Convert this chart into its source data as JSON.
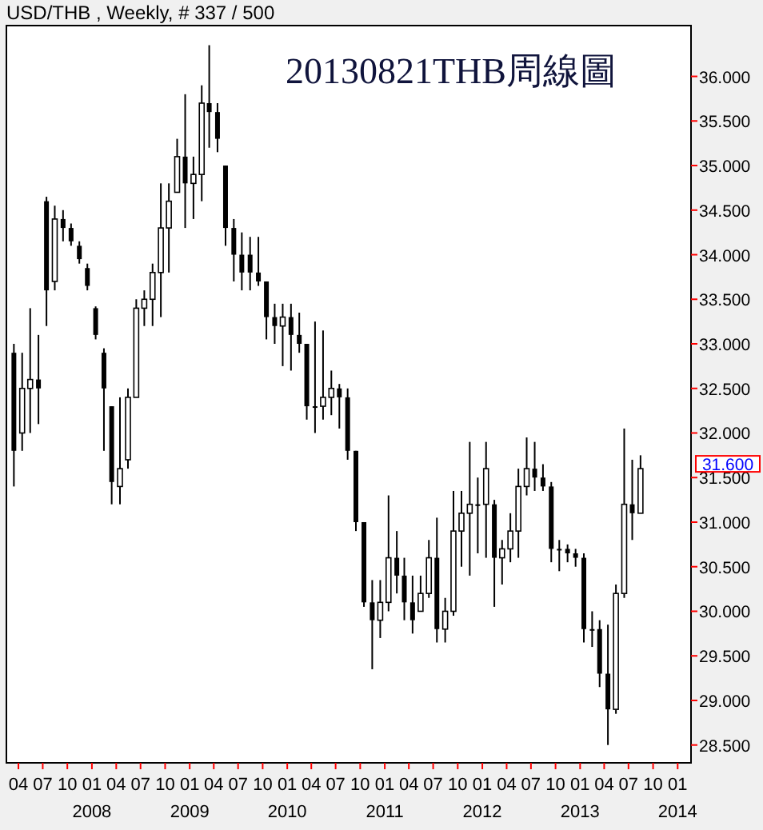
{
  "chart_data": {
    "type": "candlestick",
    "title": "20130821THB周線圖",
    "subtitle": "USD/THB , Weekly, # 337 / 500",
    "color": "#000000",
    "x": [
      "2007-03-15",
      "2007-04-15",
      "2007-05-15",
      "2007-06-15",
      "2007-07-15",
      "2007-08-15",
      "2007-09-15",
      "2007-10-15",
      "2007-11-15",
      "2007-12-15",
      "2008-01-15",
      "2008-02-15",
      "2008-03-15",
      "2008-04-15",
      "2008-05-15",
      "2008-06-15",
      "2008-07-15",
      "2008-08-15",
      "2008-09-15",
      "2008-10-15",
      "2008-11-15",
      "2008-12-15",
      "2009-01-15",
      "2009-02-15",
      "2009-03-15",
      "2009-04-15",
      "2009-05-15",
      "2009-06-15",
      "2009-07-15",
      "2009-08-15",
      "2009-09-15",
      "2009-10-15",
      "2009-11-15",
      "2009-12-15",
      "2010-01-15",
      "2010-02-15",
      "2010-03-15",
      "2010-04-15",
      "2010-05-15",
      "2010-06-15",
      "2010-07-15",
      "2010-08-15",
      "2010-09-15",
      "2010-10-15",
      "2010-11-15",
      "2010-12-15",
      "2011-01-15",
      "2011-02-15",
      "2011-03-15",
      "2011-04-15",
      "2011-05-15",
      "2011-06-15",
      "2011-07-15",
      "2011-08-15",
      "2011-09-15",
      "2011-10-15",
      "2011-11-15",
      "2011-12-15",
      "2012-01-15",
      "2012-02-15",
      "2012-03-15",
      "2012-04-15",
      "2012-05-15",
      "2012-06-15",
      "2012-07-15",
      "2012-08-15",
      "2012-09-15",
      "2012-10-15",
      "2012-11-15",
      "2012-12-15",
      "2013-01-15",
      "2013-02-15",
      "2013-03-15",
      "2013-04-15",
      "2013-05-15",
      "2013-06-15",
      "2013-07-15",
      "2013-08-15"
    ],
    "ohlc": [
      [
        32.9,
        33.0,
        31.4,
        31.8
      ],
      [
        32.0,
        32.9,
        31.8,
        32.5
      ],
      [
        32.5,
        33.4,
        32.0,
        32.6
      ],
      [
        32.6,
        33.1,
        32.1,
        32.5
      ],
      [
        34.6,
        34.65,
        33.2,
        33.6
      ],
      [
        33.7,
        34.55,
        33.6,
        34.4
      ],
      [
        34.4,
        34.5,
        34.15,
        34.3
      ],
      [
        34.3,
        34.35,
        34.1,
        34.15
      ],
      [
        34.1,
        34.15,
        33.9,
        33.95
      ],
      [
        33.85,
        33.9,
        33.6,
        33.65
      ],
      [
        33.4,
        33.42,
        33.05,
        33.1
      ],
      [
        32.9,
        32.95,
        31.8,
        32.5
      ],
      [
        32.3,
        32.3,
        31.2,
        31.45
      ],
      [
        31.4,
        32.4,
        31.2,
        31.6
      ],
      [
        31.7,
        32.5,
        31.6,
        32.4
      ],
      [
        32.4,
        33.5,
        32.4,
        33.4
      ],
      [
        33.4,
        33.6,
        33.2,
        33.5
      ],
      [
        33.5,
        33.9,
        33.2,
        33.8
      ],
      [
        33.8,
        34.8,
        33.3,
        34.3
      ],
      [
        34.3,
        34.8,
        33.8,
        34.6
      ],
      [
        34.7,
        35.3,
        34.7,
        35.1
      ],
      [
        35.1,
        35.8,
        34.3,
        34.8
      ],
      [
        34.8,
        35.1,
        34.4,
        34.9
      ],
      [
        34.9,
        35.9,
        34.6,
        35.7
      ],
      [
        35.7,
        36.35,
        35.2,
        35.6
      ],
      [
        35.6,
        35.7,
        35.15,
        35.3
      ],
      [
        35.0,
        35.0,
        34.1,
        34.3
      ],
      [
        34.3,
        34.4,
        33.7,
        34.0
      ],
      [
        34.0,
        34.25,
        33.6,
        33.8
      ],
      [
        34.0,
        34.2,
        33.6,
        33.8
      ],
      [
        33.8,
        34.2,
        33.65,
        33.7
      ],
      [
        33.7,
        33.7,
        33.05,
        33.3
      ],
      [
        33.3,
        33.45,
        33.0,
        33.2
      ],
      [
        33.2,
        33.45,
        32.75,
        33.3
      ],
      [
        33.3,
        33.45,
        32.7,
        33.1
      ],
      [
        33.1,
        33.35,
        32.9,
        33.0
      ],
      [
        33.0,
        33.0,
        32.15,
        32.3
      ],
      [
        32.3,
        33.25,
        32.0,
        32.3
      ],
      [
        32.3,
        33.15,
        32.15,
        32.4
      ],
      [
        32.4,
        32.7,
        32.2,
        32.5
      ],
      [
        32.5,
        32.55,
        32.05,
        32.4
      ],
      [
        32.4,
        32.5,
        31.7,
        31.8
      ],
      [
        31.8,
        31.8,
        30.9,
        31.0
      ],
      [
        31.0,
        31.0,
        30.05,
        30.1
      ],
      [
        30.1,
        30.35,
        29.35,
        29.9
      ],
      [
        29.9,
        30.35,
        29.7,
        30.1
      ],
      [
        30.1,
        31.3,
        30.0,
        30.6
      ],
      [
        30.6,
        30.9,
        30.2,
        30.4
      ],
      [
        30.4,
        30.6,
        29.9,
        30.1
      ],
      [
        30.1,
        30.4,
        29.75,
        29.9
      ],
      [
        30.0,
        30.4,
        30.0,
        30.2
      ],
      [
        30.2,
        30.8,
        30.15,
        30.6
      ],
      [
        30.6,
        31.05,
        29.65,
        29.8
      ],
      [
        29.8,
        30.15,
        29.65,
        30.0
      ],
      [
        30.0,
        31.35,
        29.95,
        30.9
      ],
      [
        30.9,
        31.35,
        30.5,
        31.1
      ],
      [
        31.1,
        31.9,
        30.4,
        31.2
      ],
      [
        31.2,
        31.5,
        30.65,
        31.2
      ],
      [
        31.2,
        31.9,
        30.6,
        31.6
      ],
      [
        31.2,
        31.25,
        30.05,
        30.6
      ],
      [
        30.6,
        30.8,
        30.3,
        30.7
      ],
      [
        30.7,
        31.1,
        30.55,
        30.9
      ],
      [
        30.9,
        31.6,
        30.6,
        31.4
      ],
      [
        31.4,
        31.95,
        31.3,
        31.6
      ],
      [
        31.6,
        31.9,
        31.35,
        31.5
      ],
      [
        31.5,
        31.65,
        31.35,
        31.4
      ],
      [
        31.4,
        31.45,
        30.55,
        30.7
      ],
      [
        30.7,
        30.8,
        30.45,
        30.7
      ],
      [
        30.7,
        30.75,
        30.55,
        30.65
      ],
      [
        30.65,
        30.7,
        30.5,
        30.6
      ],
      [
        30.6,
        30.65,
        29.65,
        29.8
      ],
      [
        29.8,
        30.0,
        29.6,
        29.8
      ],
      [
        29.8,
        29.9,
        29.15,
        29.3
      ],
      [
        29.3,
        29.85,
        28.5,
        28.9
      ],
      [
        28.9,
        30.3,
        28.85,
        30.2
      ],
      [
        30.2,
        32.05,
        30.15,
        31.2
      ],
      [
        31.2,
        31.7,
        30.8,
        31.1
      ],
      [
        31.1,
        31.75,
        31.1,
        31.6
      ]
    ],
    "xlim": [
      "2007-02-15",
      "2014-02-20"
    ],
    "xticks": [
      {
        "value": "2007-04-01",
        "label": "04"
      },
      {
        "value": "2007-07-01",
        "label": "07"
      },
      {
        "value": "2007-10-01",
        "label": "10"
      },
      {
        "value": "2008-01-01",
        "label": "01\n2008"
      },
      {
        "value": "2008-04-01",
        "label": "04"
      },
      {
        "value": "2008-07-01",
        "label": "07"
      },
      {
        "value": "2008-10-01",
        "label": "10"
      },
      {
        "value": "2009-01-01",
        "label": "01\n2009"
      },
      {
        "value": "2009-04-01",
        "label": "04"
      },
      {
        "value": "2009-07-01",
        "label": "07"
      },
      {
        "value": "2009-10-01",
        "label": "10"
      },
      {
        "value": "2010-01-01",
        "label": "01\n2010"
      },
      {
        "value": "2010-04-01",
        "label": "04"
      },
      {
        "value": "2010-07-01",
        "label": "07"
      },
      {
        "value": "2010-10-01",
        "label": "10"
      },
      {
        "value": "2011-01-01",
        "label": "01\n2011"
      },
      {
        "value": "2011-04-01",
        "label": "04"
      },
      {
        "value": "2011-07-01",
        "label": "07"
      },
      {
        "value": "2011-10-01",
        "label": "10"
      },
      {
        "value": "2012-01-01",
        "label": "01\n2012"
      },
      {
        "value": "2012-04-01",
        "label": "04"
      },
      {
        "value": "2012-07-01",
        "label": "07"
      },
      {
        "value": "2012-10-01",
        "label": "10"
      },
      {
        "value": "2013-01-01",
        "label": "01\n2013"
      },
      {
        "value": "2013-04-01",
        "label": "04"
      },
      {
        "value": "2013-07-01",
        "label": "07"
      },
      {
        "value": "2013-10-01",
        "label": "10"
      },
      {
        "value": "2014-01-01",
        "label": "01\n2014"
      }
    ],
    "ylim": [
      28.3,
      36.57
    ],
    "yticks": [
      {
        "value": 28.5,
        "label": "28.500"
      },
      {
        "value": 29,
        "label": "29.000"
      },
      {
        "value": 29.5,
        "label": "29.500"
      },
      {
        "value": 30,
        "label": "30.000"
      },
      {
        "value": 30.5,
        "label": "30.500"
      },
      {
        "value": 31,
        "label": "31.000"
      },
      {
        "value": 31.5,
        "label": "31.500"
      },
      {
        "value": 32,
        "label": "32.000"
      },
      {
        "value": 32.5,
        "label": "32.500"
      },
      {
        "value": 33,
        "label": "33.000"
      },
      {
        "value": 33.5,
        "label": "33.500"
      },
      {
        "value": 34,
        "label": "34.000"
      },
      {
        "value": 34.5,
        "label": "34.500"
      },
      {
        "value": 35,
        "label": "35.000"
      },
      {
        "value": 35.5,
        "label": "35.500"
      },
      {
        "value": 36,
        "label": "36.000"
      }
    ],
    "annotations": [
      "31.600"
    ]
  }
}
